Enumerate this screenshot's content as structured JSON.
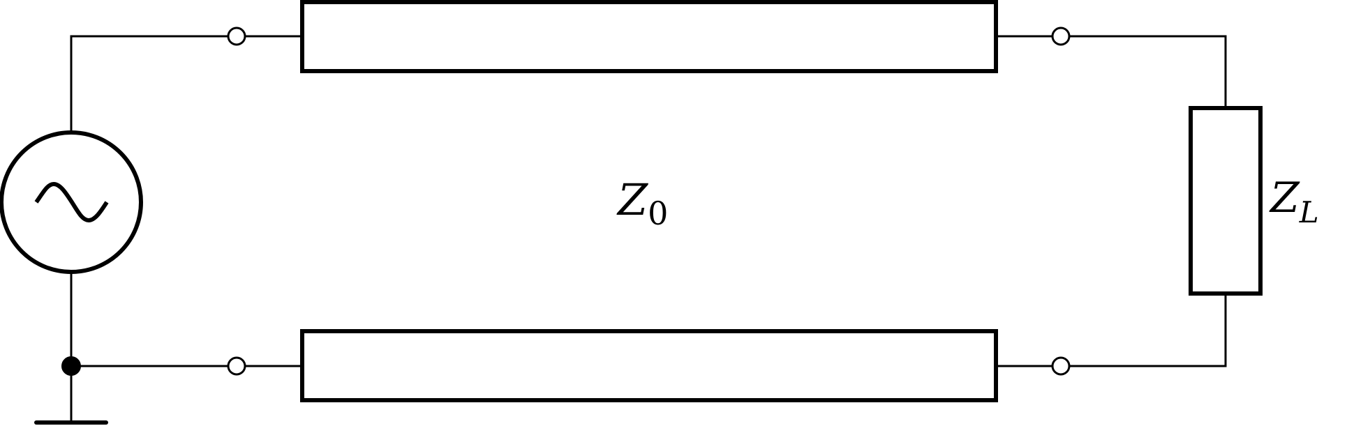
{
  "line_impedance": {
    "symbol": "Z",
    "subscript": "0"
  },
  "load_impedance": {
    "symbol": "Z",
    "subscript": "L"
  }
}
